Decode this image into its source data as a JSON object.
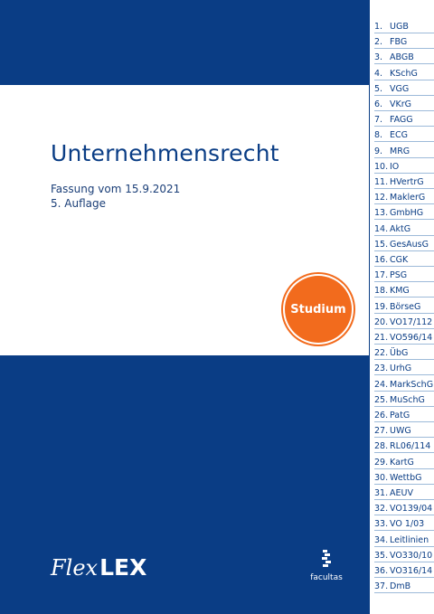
{
  "cover": {
    "title": "Unternehmensrecht",
    "edition_date": "Fassung vom 15.9.2021",
    "edition": "5. Auflage",
    "badge": "Studium",
    "logo_part1": "Flex",
    "logo_part2": "LEX",
    "publisher": "facultas",
    "colors": {
      "navy": "#0a3d85",
      "orange": "#f26b1d",
      "tab_line": "#9dbad9"
    }
  },
  "tabs": [
    {
      "num": "1.",
      "label": "UGB"
    },
    {
      "num": "2.",
      "label": "FBG"
    },
    {
      "num": "3.",
      "label": "ABGB"
    },
    {
      "num": "4.",
      "label": "KSchG"
    },
    {
      "num": "5.",
      "label": "VGG"
    },
    {
      "num": "6.",
      "label": "VKrG"
    },
    {
      "num": "7.",
      "label": "FAGG"
    },
    {
      "num": "8.",
      "label": "ECG"
    },
    {
      "num": "9.",
      "label": "MRG"
    },
    {
      "num": "10.",
      "label": "IO"
    },
    {
      "num": "11.",
      "label": "HVertrG"
    },
    {
      "num": "12.",
      "label": "MaklerG"
    },
    {
      "num": "13.",
      "label": "GmbHG"
    },
    {
      "num": "14.",
      "label": "AktG"
    },
    {
      "num": "15.",
      "label": "GesAusG"
    },
    {
      "num": "16.",
      "label": "CGK"
    },
    {
      "num": "17.",
      "label": "PSG"
    },
    {
      "num": "18.",
      "label": "KMG"
    },
    {
      "num": "19.",
      "label": "BörseG"
    },
    {
      "num": "20.",
      "label": "VO17/112"
    },
    {
      "num": "21.",
      "label": "VO596/14"
    },
    {
      "num": "22.",
      "label": "ÜbG"
    },
    {
      "num": "23.",
      "label": "UrhG"
    },
    {
      "num": "24.",
      "label": "MarkSchG"
    },
    {
      "num": "25.",
      "label": "MuSchG"
    },
    {
      "num": "26.",
      "label": "PatG"
    },
    {
      "num": "27.",
      "label": "UWG"
    },
    {
      "num": "28.",
      "label": "RL06/114"
    },
    {
      "num": "29.",
      "label": "KartG"
    },
    {
      "num": "30.",
      "label": "WettbG"
    },
    {
      "num": "31.",
      "label": "AEUV"
    },
    {
      "num": "32.",
      "label": "VO139/04"
    },
    {
      "num": "33.",
      "label": "VO 1/03"
    },
    {
      "num": "34.",
      "label": "Leitlinien"
    },
    {
      "num": "35.",
      "label": "VO330/10"
    },
    {
      "num": "36.",
      "label": "VO316/14"
    },
    {
      "num": "37.",
      "label": "DmB"
    }
  ]
}
